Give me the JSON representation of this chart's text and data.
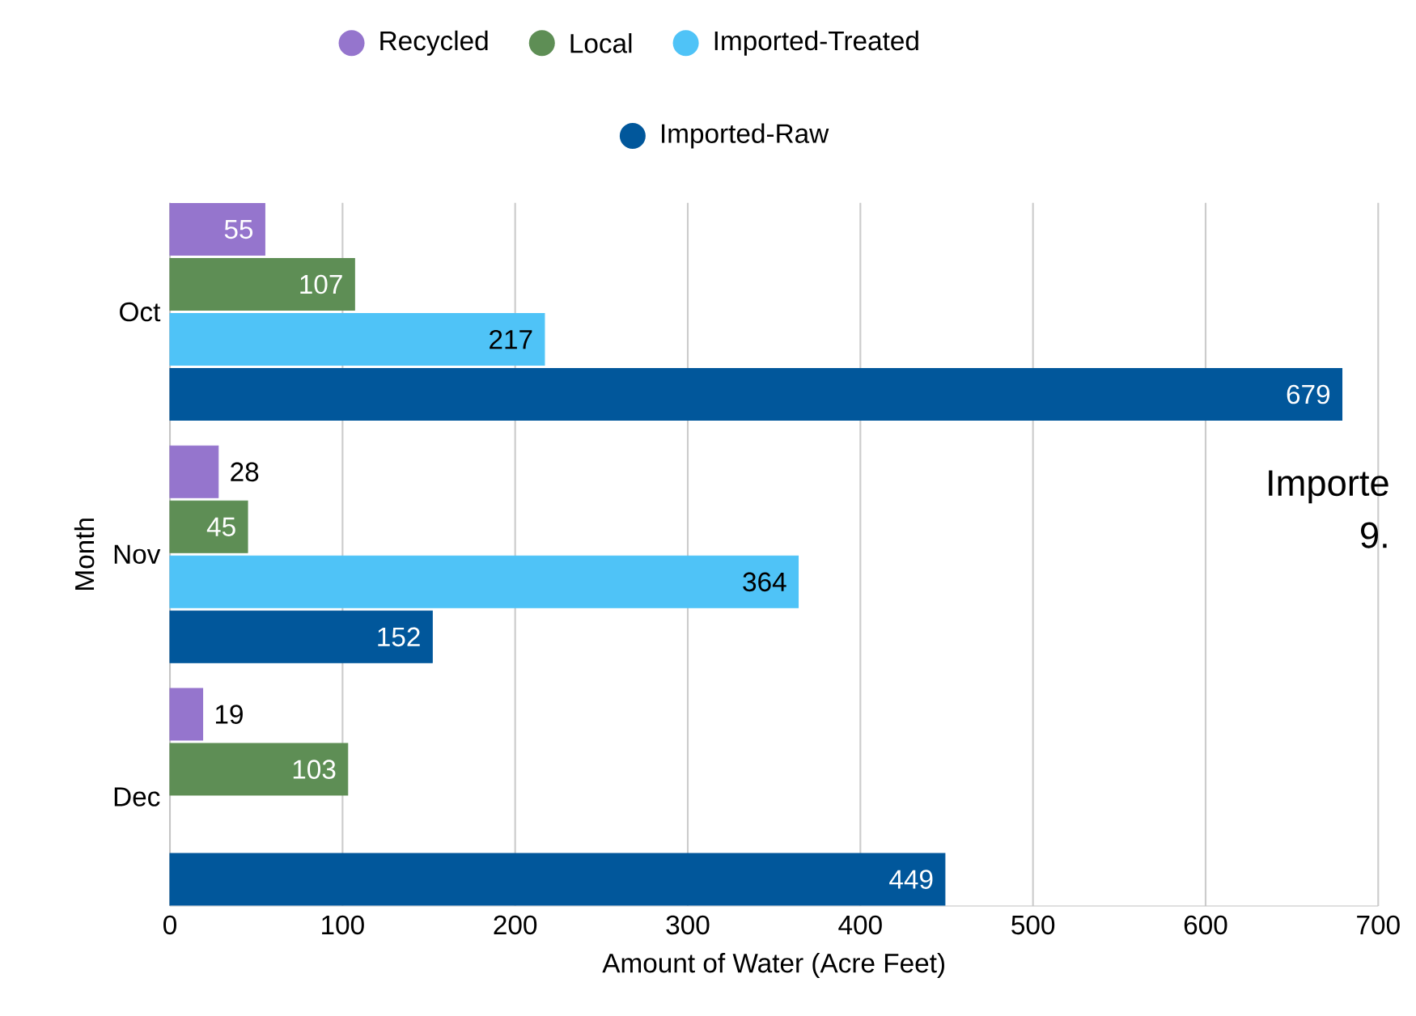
{
  "chart_data": {
    "type": "bar",
    "orientation": "horizontal",
    "xlabel": "Amount of Water (Acre Feet)",
    "ylabel": "Month",
    "categories": [
      "Oct",
      "Nov",
      "Dec"
    ],
    "series": [
      {
        "name": "Recycled",
        "color": "#9575cd",
        "values": [
          55,
          28,
          19
        ]
      },
      {
        "name": "Local",
        "color": "#5e8e55",
        "values": [
          107,
          45,
          103
        ]
      },
      {
        "name": "Imported-Treated",
        "color": "#4fc3f7",
        "values": [
          217,
          364,
          null
        ]
      },
      {
        "name": "Imported-Raw",
        "color": "#01579b",
        "values": [
          679,
          152,
          449
        ]
      }
    ],
    "xlim": [
      0,
      700
    ],
    "xticks": [
      0,
      100,
      200,
      300,
      400,
      500,
      600,
      700
    ],
    "grid": "x",
    "legend": "top",
    "data_labels": true,
    "annotations": [
      "Importe",
      "9."
    ]
  }
}
